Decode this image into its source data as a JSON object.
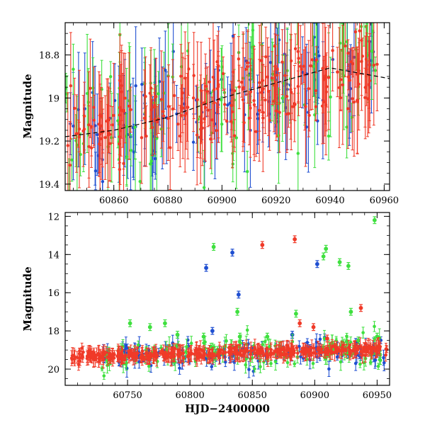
{
  "chart_data": [
    {
      "type": "scatter",
      "panel": "top",
      "title": "",
      "xlabel": "",
      "ylabel": "Magnitude",
      "xlim": [
        60842,
        60962
      ],
      "ylim": [
        19.43,
        18.65
      ],
      "y_inverted": true,
      "x_ticks": [
        60860,
        60880,
        60900,
        60920,
        60940,
        60960
      ],
      "y_ticks": [
        18.8,
        19,
        19.2,
        19.4
      ],
      "x_tick_labels": [
        "60860",
        "60880",
        "60900",
        "60920",
        "60940",
        "60960"
      ],
      "y_tick_labels": [
        "18.8",
        "19",
        "19.2",
        "19.4"
      ],
      "model_curve": {
        "style": "dashed",
        "color": "#000000",
        "x": [
          60842,
          60860,
          60880,
          60900,
          60920,
          60940,
          60962
        ],
        "y": [
          19.18,
          19.15,
          19.09,
          19.0,
          18.93,
          18.86,
          18.91
        ]
      },
      "series": [
        {
          "name": "blue",
          "color": "#1f4fd1",
          "trend_x": [
            60842,
            60962
          ],
          "trend_y": [
            19.2,
            18.82
          ],
          "scatter": 0.12,
          "n": 110,
          "x_range": [
            60842,
            60958
          ]
        },
        {
          "name": "green",
          "color": "#3fe03f",
          "trend_x": [
            60842,
            60962
          ],
          "trend_y": [
            19.15,
            18.82
          ],
          "scatter": 0.16,
          "n": 110,
          "x_range": [
            60842,
            60958
          ]
        },
        {
          "name": "red",
          "color": "#f03a28",
          "trend_x": [
            60842,
            60962
          ],
          "trend_y": [
            19.14,
            18.85
          ],
          "scatter": 0.09,
          "n": 240,
          "x_range": [
            60842,
            60958
          ]
        }
      ]
    },
    {
      "type": "scatter",
      "panel": "bottom",
      "title": "",
      "xlabel": "HJD−2400000",
      "ylabel": "Magnitude",
      "xlim": [
        60700,
        60960
      ],
      "ylim": [
        20.85,
        11.8
      ],
      "y_inverted": true,
      "x_ticks": [
        60750,
        60800,
        60850,
        60900,
        60950
      ],
      "y_ticks": [
        12,
        14,
        16,
        18,
        20
      ],
      "x_tick_labels": [
        "60750",
        "60800",
        "60850",
        "60900",
        "60950"
      ],
      "y_tick_labels": [
        "12",
        "14",
        "16",
        "18",
        "20"
      ],
      "series": [
        {
          "name": "blue",
          "color": "#1f4fd1",
          "baseline_x": [
            60730,
            60958
          ],
          "baseline_y": [
            19.3,
            19.0
          ],
          "scatter": 0.35,
          "n": 140,
          "x_range": [
            60730,
            60958
          ],
          "outliers": [
            [
              60813,
              14.7
            ],
            [
              60818,
              18.0
            ],
            [
              60834,
              13.9
            ],
            [
              60839,
              16.1
            ],
            [
              60882,
              18.2
            ],
            [
              60896,
              18.9
            ],
            [
              60902,
              14.5
            ],
            [
              60934,
              18.6
            ]
          ]
        },
        {
          "name": "green",
          "color": "#3fe03f",
          "baseline_x": [
            60728,
            60958
          ],
          "baseline_y": [
            19.4,
            19.0
          ],
          "scatter": 0.45,
          "n": 150,
          "x_range": [
            60728,
            60958
          ],
          "outliers": [
            [
              60752,
              17.6
            ],
            [
              60768,
              17.8
            ],
            [
              60780,
              17.6
            ],
            [
              60790,
              18.2
            ],
            [
              60811,
              18.3
            ],
            [
              60819,
              13.6
            ],
            [
              60838,
              17.0
            ],
            [
              60840,
              18.3
            ],
            [
              60862,
              18.3
            ],
            [
              60885,
              17.1
            ],
            [
              60907,
              14.1
            ],
            [
              60909,
              13.7
            ],
            [
              60920,
              14.4
            ],
            [
              60927,
              14.6
            ],
            [
              60929,
              17.0
            ],
            [
              60935,
              18.5
            ],
            [
              60948,
              12.2
            ],
            [
              60950,
              18.3
            ]
          ]
        },
        {
          "name": "red",
          "color": "#f03a28",
          "baseline_x": [
            60705,
            60958
          ],
          "baseline_y": [
            19.35,
            18.95
          ],
          "scatter": 0.13,
          "n": 420,
          "x_range": [
            60705,
            60958
          ],
          "outliers": [
            [
              60858,
              13.5
            ],
            [
              60884,
              13.2
            ],
            [
              60888,
              17.6
            ],
            [
              60899,
              17.8
            ],
            [
              60910,
              18.4
            ],
            [
              60937,
              16.8
            ]
          ]
        }
      ]
    }
  ]
}
